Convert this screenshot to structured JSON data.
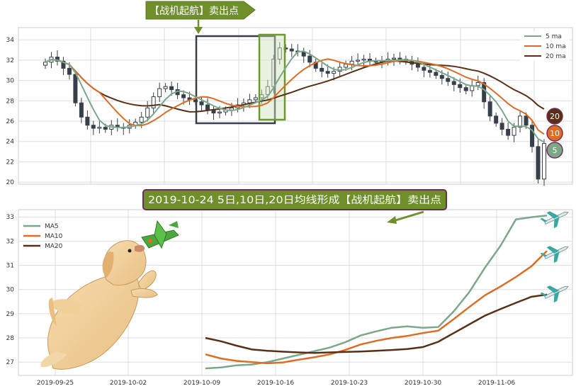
{
  "chart_data": [
    {
      "type": "candlestick",
      "ylim": [
        19.8,
        35.2
      ],
      "yticks": [
        20,
        22,
        24,
        26,
        28,
        30,
        32,
        34
      ],
      "grid": true,
      "legend_placement": "top-right",
      "series": [
        {
          "name": "5 ma",
          "color": "#7aa889"
        },
        {
          "name": "10 ma",
          "color": "#e06c23"
        },
        {
          "name": "20 ma",
          "color": "#5a2f15"
        }
      ],
      "closes": [
        31.8,
        32.3,
        31.9,
        31.2,
        30.6,
        27.8,
        26.4,
        25.6,
        25.3,
        25.4,
        25.2,
        25.6,
        25.4,
        25.3,
        25.6,
        25.9,
        26.4,
        27.3,
        28.4,
        29.2,
        29.4,
        29.1,
        28.6,
        28.3,
        28.1,
        27.9,
        27.6,
        27.1,
        26.8,
        26.9,
        27.1,
        27.3,
        27.6,
        27.8,
        28.1,
        28.3,
        28.6,
        29.4,
        32.1,
        33.2,
        33.1,
        32.9,
        32.8,
        32.4,
        31.8,
        31.2,
        30.9,
        30.7,
        30.9,
        31.3,
        31.6,
        31.9,
        32.0,
        32.1,
        31.9,
        31.8,
        31.9,
        32.1,
        32.2,
        32.1,
        31.9,
        31.6,
        31.3,
        31.0,
        30.8,
        30.5,
        30.2,
        29.9,
        29.6,
        29.3,
        29.0,
        29.5,
        29.8,
        27.9,
        26.5,
        25.8,
        25.2,
        24.6,
        25.4,
        26.5,
        25.6,
        23.5,
        20.3,
        23.8
      ],
      "annotations": {
        "banner": "【战机起航】卖出点",
        "badges": [
          "20",
          "10",
          "5"
        ]
      }
    },
    {
      "type": "line",
      "title": "2019-10-24 5日,10日,20日均线形成【战机起航】卖出点",
      "ylim": [
        26.45,
        33.3
      ],
      "yticks": [
        27,
        28,
        29,
        30,
        31,
        32,
        33
      ],
      "xticks": [
        "2019-09-25",
        "2019-10-02",
        "2019-10-09",
        "2019-10-16",
        "2019-10-23",
        "2019-10-30",
        "2019-11-06"
      ],
      "grid": true,
      "legend_placement": "top-left",
      "series": [
        {
          "name": "MA5",
          "color": "#7aa889",
          "values": [
            26.74,
            26.78,
            26.87,
            26.9,
            27.0,
            27.15,
            27.3,
            27.45,
            27.6,
            27.82,
            28.1,
            28.27,
            28.42,
            28.48,
            28.42,
            28.45,
            29.1,
            29.9,
            30.9,
            31.8,
            32.9,
            32.99,
            33.06
          ]
        },
        {
          "name": "MA10",
          "color": "#e06c23",
          "values": [
            27.32,
            27.15,
            27.05,
            27.0,
            26.95,
            26.99,
            27.1,
            27.2,
            27.32,
            27.5,
            27.73,
            27.88,
            28.0,
            28.08,
            28.2,
            28.3,
            28.78,
            29.28,
            29.76,
            30.12,
            30.52,
            30.96,
            31.6
          ]
        },
        {
          "name": "MA20",
          "color": "#5a2f15",
          "values": [
            28.0,
            27.86,
            27.68,
            27.52,
            27.47,
            27.43,
            27.4,
            27.38,
            27.4,
            27.42,
            27.44,
            27.47,
            27.5,
            27.54,
            27.62,
            27.84,
            28.2,
            28.56,
            28.92,
            29.19,
            29.45,
            29.7,
            29.79
          ]
        }
      ]
    }
  ]
}
